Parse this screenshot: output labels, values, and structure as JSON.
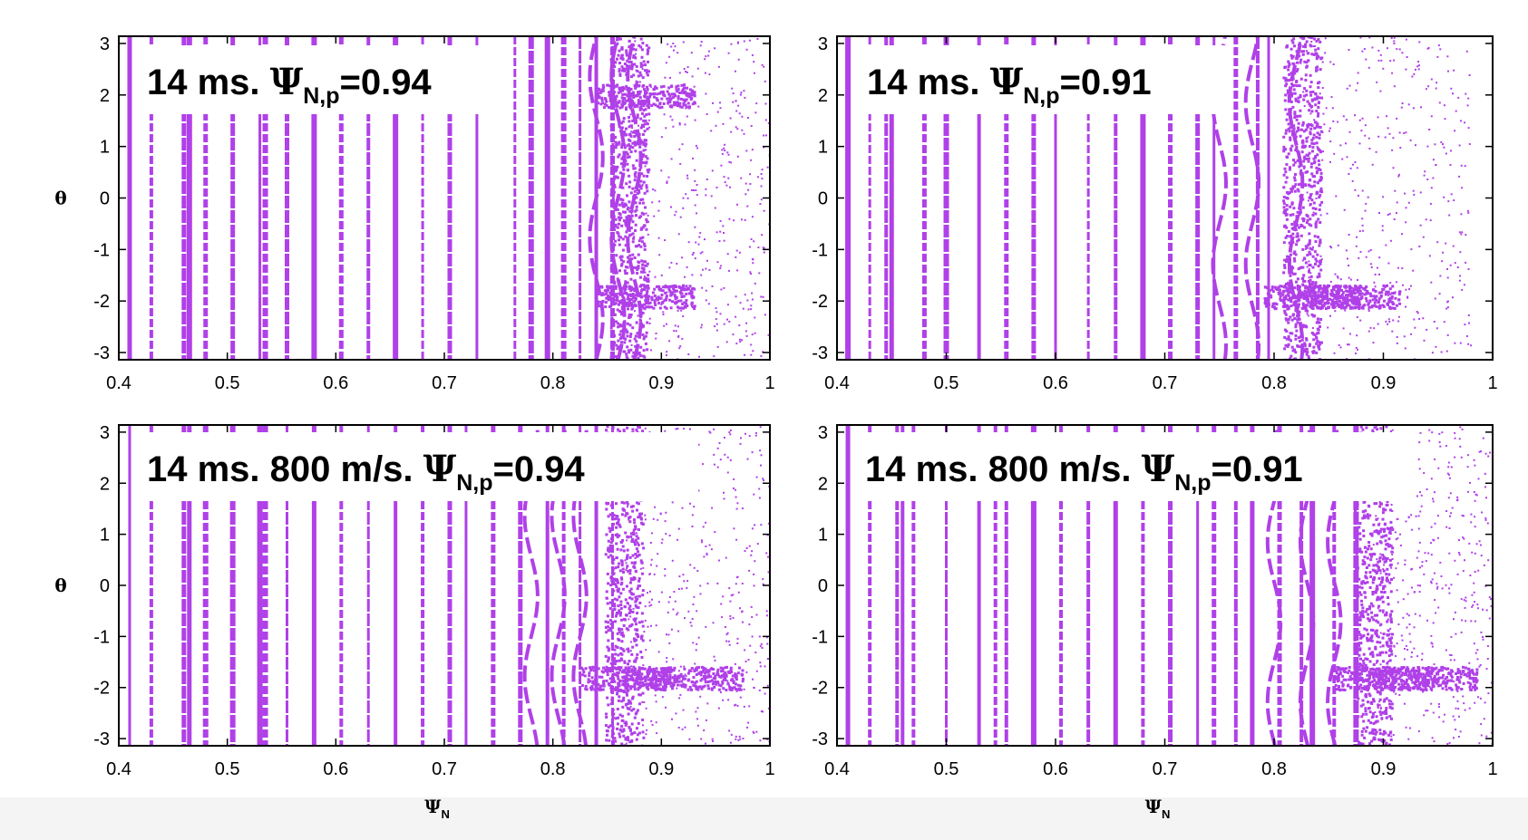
{
  "colors": {
    "points": "#b040e8",
    "frame": "#000000",
    "label_bg": "#ffffff"
  },
  "chart_data": [
    {
      "type": "scatter",
      "title": "",
      "annotation": {
        "text": "14 ms. ",
        "psi": "Ψ",
        "sub": "N,p",
        "value": "=0.94"
      },
      "xlabel": {
        "main": "",
        "sub": ""
      },
      "ylabel": "θ",
      "xlim": [
        0.4,
        1.0
      ],
      "ylim": [
        -3.14,
        3.14
      ],
      "xticks": [
        "0.4",
        "0.5",
        "0.6",
        "0.7",
        "0.8",
        "0.9",
        "1"
      ],
      "yticks": [
        "3",
        "2",
        "1",
        "0",
        "-1",
        "-2",
        "-3"
      ],
      "columns": [
        0.41,
        0.43,
        0.46,
        0.465,
        0.48,
        0.505,
        0.53,
        0.535,
        0.555,
        0.58,
        0.605,
        0.63,
        0.655,
        0.68,
        0.705,
        0.73,
        0.765,
        0.78,
        0.795,
        0.81,
        0.825,
        0.84,
        0.855
      ],
      "islands": [
        0.84,
        0.86,
        0.875
      ],
      "chaos_edge": 0.87,
      "scatter_limit": 1.0,
      "clusters": [
        {
          "x": 0.885,
          "theta": -1.9
        },
        {
          "x": 0.885,
          "theta": 2.0
        }
      ]
    },
    {
      "type": "scatter",
      "title": "",
      "annotation": {
        "text": "14 ms. ",
        "psi": "Ψ",
        "sub": "N,p",
        "value": "=0.91"
      },
      "xlabel": {
        "main": "",
        "sub": ""
      },
      "ylabel": "",
      "xlim": [
        0.4,
        1.0
      ],
      "ylim": [
        -3.14,
        3.14
      ],
      "xticks": [
        "0.4",
        "0.5",
        "0.6",
        "0.7",
        "0.8",
        "0.9",
        "1"
      ],
      "yticks": [
        "3",
        "2",
        "1",
        "0",
        "-1",
        "-2",
        "-3"
      ],
      "columns": [
        0.41,
        0.43,
        0.445,
        0.45,
        0.48,
        0.5,
        0.53,
        0.555,
        0.58,
        0.6,
        0.63,
        0.655,
        0.68,
        0.705,
        0.73,
        0.745,
        0.765,
        0.785,
        0.795
      ],
      "islands": [
        0.75,
        0.78,
        0.82
      ],
      "chaos_edge": 0.825,
      "scatter_limit": 0.98,
      "clusters": [
        {
          "x": 0.835,
          "theta": -1.9
        },
        {
          "x": 0.87,
          "theta": -1.9
        }
      ]
    },
    {
      "type": "scatter",
      "title": "",
      "annotation": {
        "text": "14 ms. 800 m/s. ",
        "psi": "Ψ",
        "sub": "N,p",
        "value": "=0.94"
      },
      "xlabel": {
        "main": "Ψ",
        "sub": "N"
      },
      "ylabel": "θ",
      "xlim": [
        0.4,
        1.0
      ],
      "ylim": [
        -3.14,
        3.14
      ],
      "xticks": [
        "0.4",
        "0.5",
        "0.6",
        "0.7",
        "0.8",
        "0.9",
        "1"
      ],
      "yticks": [
        "3",
        "2",
        "1",
        "0",
        "-1",
        "-2",
        "-3"
      ],
      "columns": [
        0.41,
        0.43,
        0.46,
        0.465,
        0.48,
        0.505,
        0.53,
        0.535,
        0.555,
        0.58,
        0.605,
        0.63,
        0.655,
        0.68,
        0.705,
        0.72,
        0.745,
        0.77,
        0.795,
        0.81,
        0.825,
        0.84,
        0.855
      ],
      "islands": [
        0.78,
        0.805,
        0.825
      ],
      "chaos_edge": 0.865,
      "scatter_limit": 1.0,
      "clusters": [
        {
          "x": 0.93,
          "theta": -1.8
        },
        {
          "x": 0.87,
          "theta": -1.8
        }
      ]
    },
    {
      "type": "scatter",
      "title": "",
      "annotation": {
        "text": "14 ms. 800 m/s. ",
        "psi": "Ψ",
        "sub": "N,p",
        "value": "=0.91"
      },
      "xlabel": {
        "main": "Ψ",
        "sub": "N"
      },
      "ylabel": "",
      "xlim": [
        0.4,
        1.0
      ],
      "ylim": [
        -3.14,
        3.14
      ],
      "xticks": [
        "0.4",
        "0.5",
        "0.6",
        "0.7",
        "0.8",
        "0.9",
        "1"
      ],
      "yticks": [
        "3",
        "2",
        "1",
        "0",
        "-1",
        "-2",
        "-3"
      ],
      "columns": [
        0.41,
        0.43,
        0.455,
        0.46,
        0.47,
        0.5,
        0.53,
        0.545,
        0.555,
        0.58,
        0.605,
        0.63,
        0.655,
        0.68,
        0.705,
        0.73,
        0.745,
        0.765,
        0.78,
        0.805,
        0.825,
        0.835,
        0.855,
        0.875
      ],
      "islands": [
        0.8,
        0.83,
        0.855
      ],
      "chaos_edge": 0.89,
      "scatter_limit": 1.0,
      "clusters": [
        {
          "x": 0.94,
          "theta": -1.8
        },
        {
          "x": 0.9,
          "theta": -1.8
        }
      ]
    }
  ]
}
